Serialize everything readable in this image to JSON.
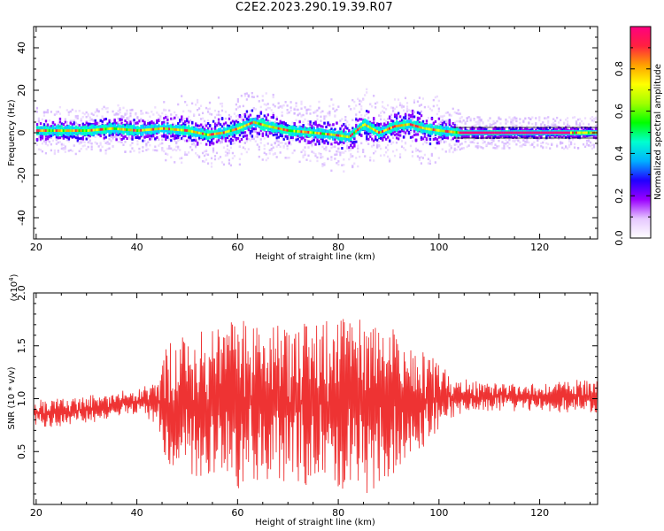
{
  "title": "C2E2.2023.290.19.39.R07",
  "chart_data": [
    {
      "type": "heatmap",
      "name": "spectrogram",
      "xlabel": "Height of straight line (km)",
      "ylabel": "Frequency (Hz)",
      "xlim": [
        19.5,
        131.5
      ],
      "ylim": [
        -50,
        50
      ],
      "xticks": [
        20,
        40,
        60,
        80,
        100,
        120
      ],
      "yticks": [
        -40,
        -20,
        0,
        20,
        40
      ],
      "colorbar": {
        "label": "Normalized spectral amplitude",
        "range": [
          0,
          1
        ],
        "ticks": [
          0.0,
          0.2,
          0.4,
          0.6,
          0.8
        ],
        "colors": [
          "#ffffff",
          "#e6c8ff",
          "#9b00ff",
          "#2000ff",
          "#00b0ff",
          "#00ffd0",
          "#00ff00",
          "#a0ff00",
          "#ffff00",
          "#ffa000",
          "#ff2040",
          "#ff0080"
        ]
      },
      "centerline": {
        "x": [
          20,
          25,
          30,
          35,
          40,
          45,
          50,
          54,
          57,
          60,
          63,
          66,
          70,
          75,
          79,
          82,
          85,
          88,
          91,
          94,
          97,
          100,
          104,
          110,
          120,
          126,
          131
        ],
        "y": [
          1,
          1,
          1,
          2,
          1,
          2,
          1,
          -1,
          0,
          2,
          5,
          3,
          1,
          0,
          -1,
          -2,
          4,
          0,
          3,
          4,
          2,
          1,
          0,
          0,
          0,
          0,
          0
        ]
      }
    },
    {
      "type": "line",
      "name": "snr",
      "xlabel": "Height of straight line (km)",
      "ylabel": "SNR (10 * v/v)",
      "y_multiplier_label": "(x10",
      "y_multiplier_exp": "4",
      "y_multiplier_close": ")",
      "xlim": [
        19.5,
        131.5
      ],
      "ylim": [
        0,
        20000
      ],
      "xticks": [
        20,
        40,
        60,
        80,
        100,
        120
      ],
      "yticks": [
        5000,
        10000,
        15000,
        20000
      ],
      "ytick_labels": [
        "0.5",
        "1.0",
        "1.5",
        "2.0"
      ],
      "color": "#ee3333",
      "envelope": {
        "x": [
          20,
          25,
          30,
          35,
          40,
          44,
          46,
          50,
          55,
          60,
          65,
          70,
          75,
          80,
          85,
          90,
          95,
          100,
          104,
          110,
          120,
          126,
          131
        ],
        "center": [
          8500,
          8700,
          9000,
          9400,
          9600,
          9700,
          9500,
          9500,
          9500,
          9500,
          9500,
          9500,
          9500,
          9500,
          9500,
          9600,
          9800,
          10000,
          10200,
          10200,
          10200,
          10200,
          10200
        ],
        "amplitude": [
          1200,
          1200,
          1200,
          1100,
          1100,
          2000,
          5500,
          6500,
          7500,
          8000,
          7500,
          7500,
          7800,
          8500,
          8500,
          7500,
          5000,
          3500,
          1600,
          1200,
          1200,
          1400,
          1500
        ]
      }
    }
  ]
}
